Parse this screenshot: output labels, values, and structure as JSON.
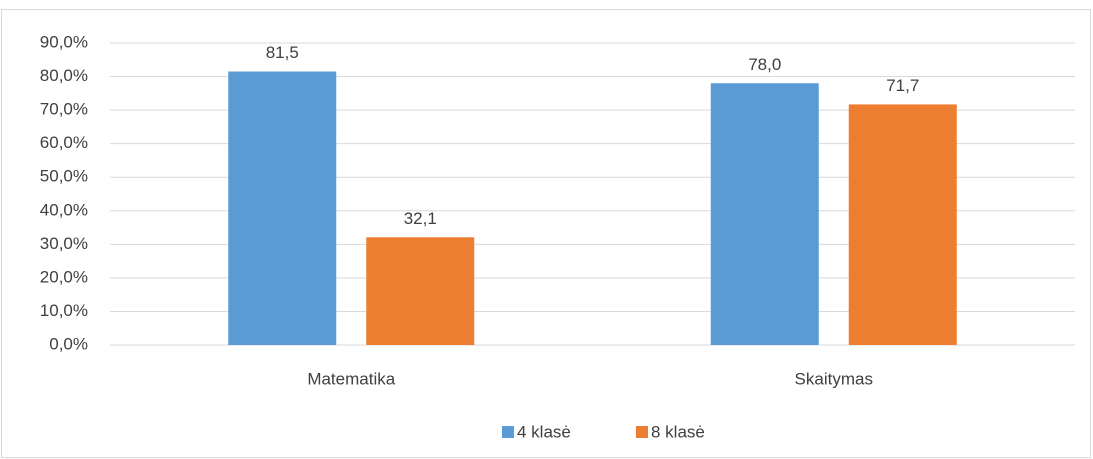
{
  "chart_data": {
    "type": "bar",
    "categories": [
      "Matematika",
      "Skaitymas"
    ],
    "series": [
      {
        "name": "4 klasė",
        "color": "#5b9bd5",
        "values": [
          81.5,
          78.0
        ],
        "value_labels": [
          "81,5",
          "78,0"
        ]
      },
      {
        "name": "8 klasė",
        "color": "#ed7d31",
        "values": [
          32.1,
          71.7
        ],
        "value_labels": [
          "32,1",
          "71,7"
        ]
      }
    ],
    "ylim": [
      0,
      90
    ],
    "yticks": [
      {
        "value": 0,
        "label": "0,0%"
      },
      {
        "value": 10,
        "label": "10,0%"
      },
      {
        "value": 20,
        "label": "20,0%"
      },
      {
        "value": 30,
        "label": "30,0%"
      },
      {
        "value": 40,
        "label": "40,0%"
      },
      {
        "value": 50,
        "label": "50,0%"
      },
      {
        "value": 60,
        "label": "60,0%"
      },
      {
        "value": 70,
        "label": "70,0%"
      },
      {
        "value": 80,
        "label": "80,0%"
      },
      {
        "value": 90,
        "label": "90,0%"
      }
    ],
    "grid": true,
    "legend": "bottom"
  }
}
